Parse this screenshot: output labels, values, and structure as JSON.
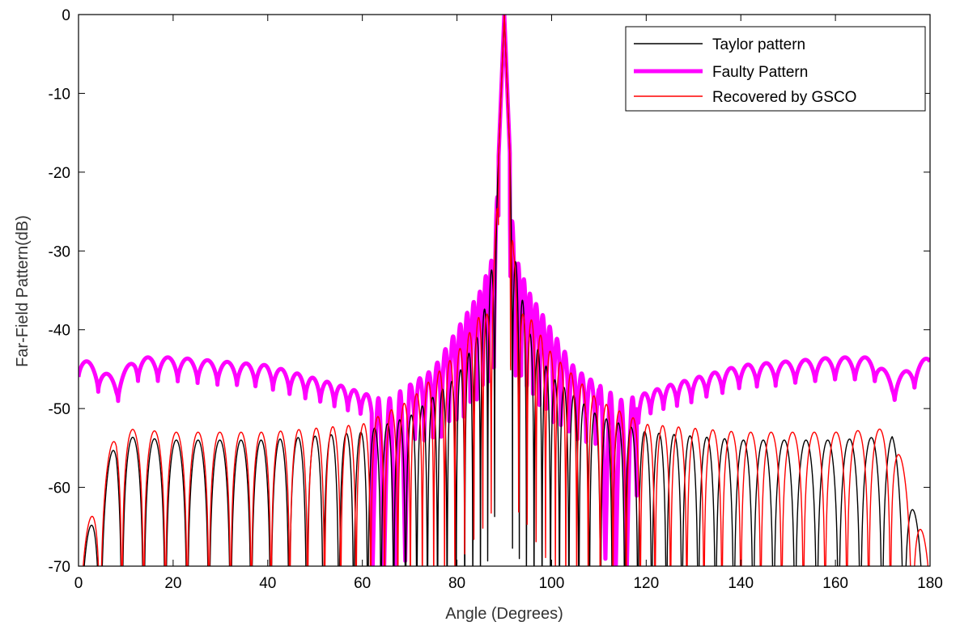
{
  "chart_data": {
    "type": "line",
    "xlabel": "Angle (Degrees)",
    "ylabel": "Far-Field Pattern(dB)",
    "xlim": [
      0,
      180
    ],
    "ylim": [
      -70,
      0
    ],
    "xticks": [
      0,
      20,
      40,
      60,
      80,
      100,
      120,
      140,
      160,
      180
    ],
    "yticks": [
      0,
      -10,
      -20,
      -30,
      -40,
      -50,
      -60,
      -70
    ],
    "grid": false,
    "legend_position": "top-right",
    "series": [
      {
        "name": "Taylor pattern",
        "color": "#000000",
        "peak": {
          "x": 90,
          "y": 0
        },
        "envelope_x": [
          0,
          8,
          20,
          40,
          60,
          70,
          80,
          85,
          88,
          89,
          90,
          91,
          92,
          95,
          100,
          110,
          120,
          140,
          160,
          172,
          180
        ],
        "envelope_y": [
          -70,
          -53.5,
          -54,
          -54,
          -53,
          -51,
          -46,
          -40,
          -30,
          -15,
          0,
          -15,
          -30,
          -40,
          -46,
          -51,
          -53,
          -54,
          -54,
          -53.5,
          -70
        ],
        "floor": -70
      },
      {
        "name": "Faulty Pattern",
        "color": "#ff00ff",
        "peak": {
          "x": 90,
          "y": 0
        },
        "envelope_x": [
          0,
          8,
          12,
          20,
          40,
          55,
          65,
          75,
          80,
          85,
          88,
          89,
          90,
          91,
          92,
          95,
          100,
          105,
          115,
          125,
          140,
          160,
          168,
          172,
          180
        ],
        "envelope_y": [
          -43.3,
          -46.3,
          -43.5,
          -43.5,
          -44.5,
          -47,
          -49,
          -45,
          -40,
          -35,
          -30,
          -15,
          0,
          -15,
          -30,
          -35,
          -40,
          -45,
          -49,
          -47,
          -44.5,
          -43.5,
          -43.5,
          -46.3,
          -43.3
        ],
        "floor": -70
      },
      {
        "name": "Recovered by GSCO",
        "color": "#ff0000",
        "peak": {
          "x": 90,
          "y": 0
        },
        "envelope_x": [
          0,
          8,
          20,
          40,
          60,
          70,
          75,
          80,
          85,
          87,
          88,
          89,
          90,
          91,
          92,
          93,
          95,
          100,
          105,
          110,
          120,
          140,
          160,
          172,
          180
        ],
        "envelope_y": [
          -69,
          -52.5,
          -53,
          -53,
          -52,
          -49,
          -46,
          -43,
          -38,
          -38,
          -30,
          -15,
          0,
          -15,
          -30,
          -38,
          -38,
          -43,
          -46,
          -49,
          -52,
          -53,
          -53,
          -52.5,
          -69
        ],
        "floor": -60
      }
    ]
  }
}
